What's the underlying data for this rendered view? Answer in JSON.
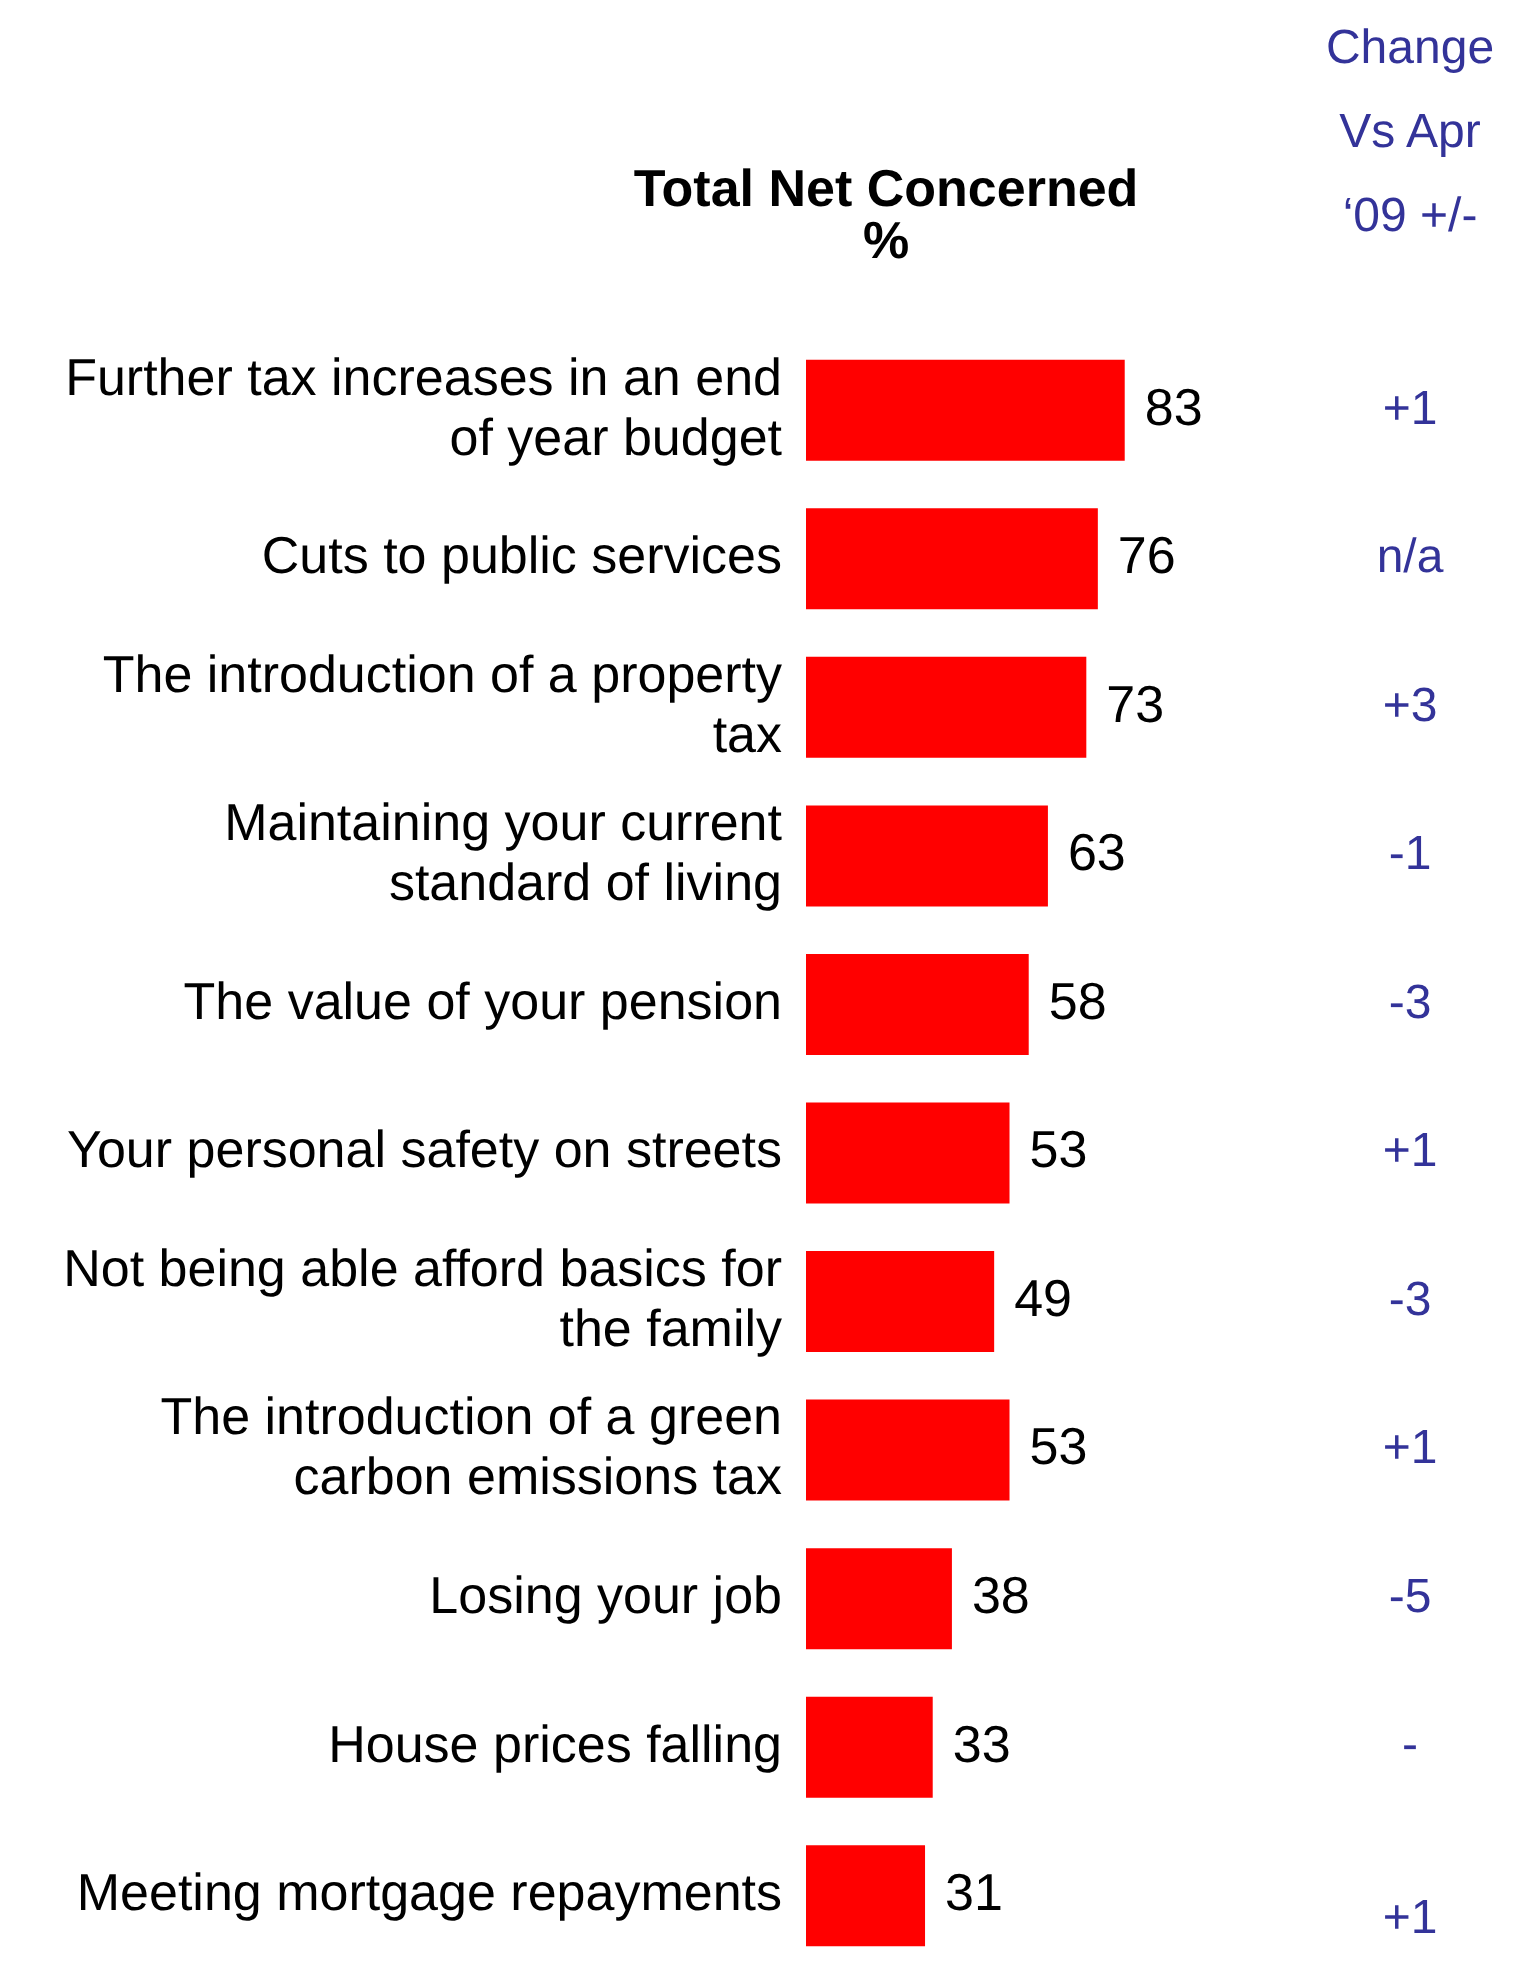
{
  "chart_data": {
    "type": "bar",
    "orientation": "horizontal",
    "title": "Total Net Concerned",
    "subtitle": "%",
    "categories": [
      "Further tax increases in an end of year budget",
      "Cuts to public services",
      "The introduction of a property tax",
      "Maintaining your current standard of living",
      "The value of your pension",
      "Your personal safety on streets",
      "Not being able afford basics for the family",
      "The introduction of a green carbon emissions tax",
      "Losing your job",
      "House prices falling",
      "Meeting mortgage repayments"
    ],
    "values": [
      83,
      76,
      73,
      63,
      58,
      53,
      49,
      53,
      38,
      33,
      31
    ],
    "color": "#ff0000",
    "data_labels": true,
    "annotations": [
      "Change Vs Apr ‘09 +/-",
      "+1",
      "n/a",
      "+3",
      "-1",
      "-3",
      "+1",
      "-3",
      "+1",
      "-5",
      "-",
      "+1"
    ]
  }
}
